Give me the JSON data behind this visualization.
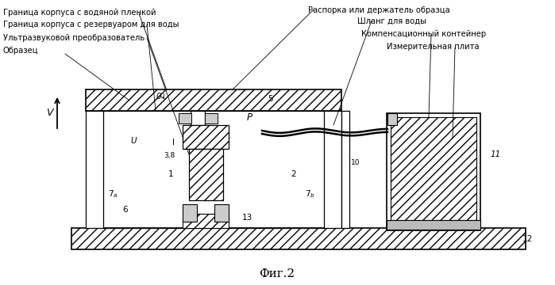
{
  "bg": "#ffffff",
  "lc": "#000000",
  "fig_caption": "Фиг.2",
  "label_tl1": "Граница корпуса с водяной пленкой",
  "label_tl2": "Граница корпуса с резервуаром для воды",
  "label_tl3": "Ультразвуковой преобразователь",
  "label_tl4": "Образец",
  "label_tr1": "Распорка или держатель образца",
  "label_tr2": "Шланг для воды",
  "label_tr3": "Компенсационный контейнер",
  "label_tr4": "Измерительная плита"
}
